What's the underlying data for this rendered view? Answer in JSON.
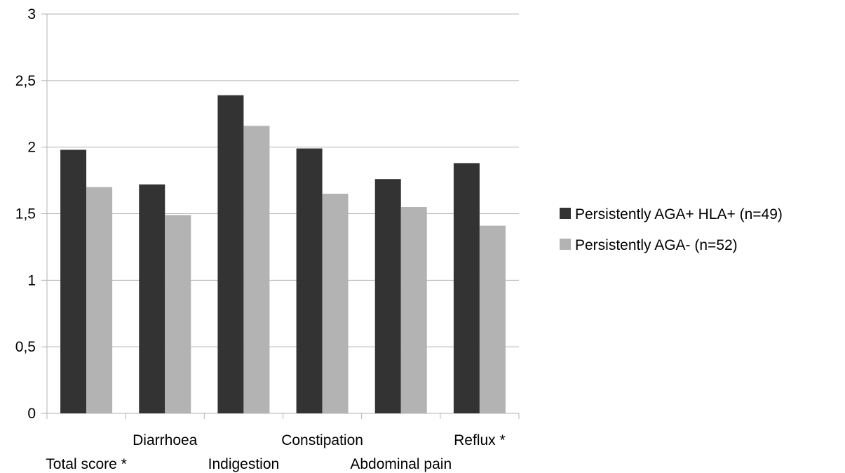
{
  "chart_data": {
    "type": "bar",
    "categories": [
      "Total score *",
      "Diarrhoea",
      "Indigestion",
      "Constipation",
      "Abdominal pain",
      "Reflux *"
    ],
    "series": [
      {
        "name": "Persistently AGA+ HLA+ (n=49)",
        "color": "#333333",
        "values": [
          1.98,
          1.72,
          2.39,
          1.99,
          1.76,
          1.88
        ]
      },
      {
        "name": "Persistently AGA- (n=52)",
        "color": "#b3b3b3",
        "values": [
          1.7,
          1.49,
          2.16,
          1.65,
          1.55,
          1.41
        ]
      }
    ],
    "ylim": [
      0,
      3
    ],
    "yticks": [
      0,
      0.5,
      1,
      1.5,
      2,
      2.5,
      3
    ],
    "ytick_labels": [
      "0",
      "0,5",
      "1",
      "1,5",
      "2",
      "2,5",
      "3"
    ],
    "grid": true,
    "legend_position": "right",
    "title": "",
    "xlabel": "",
    "ylabel": ""
  }
}
